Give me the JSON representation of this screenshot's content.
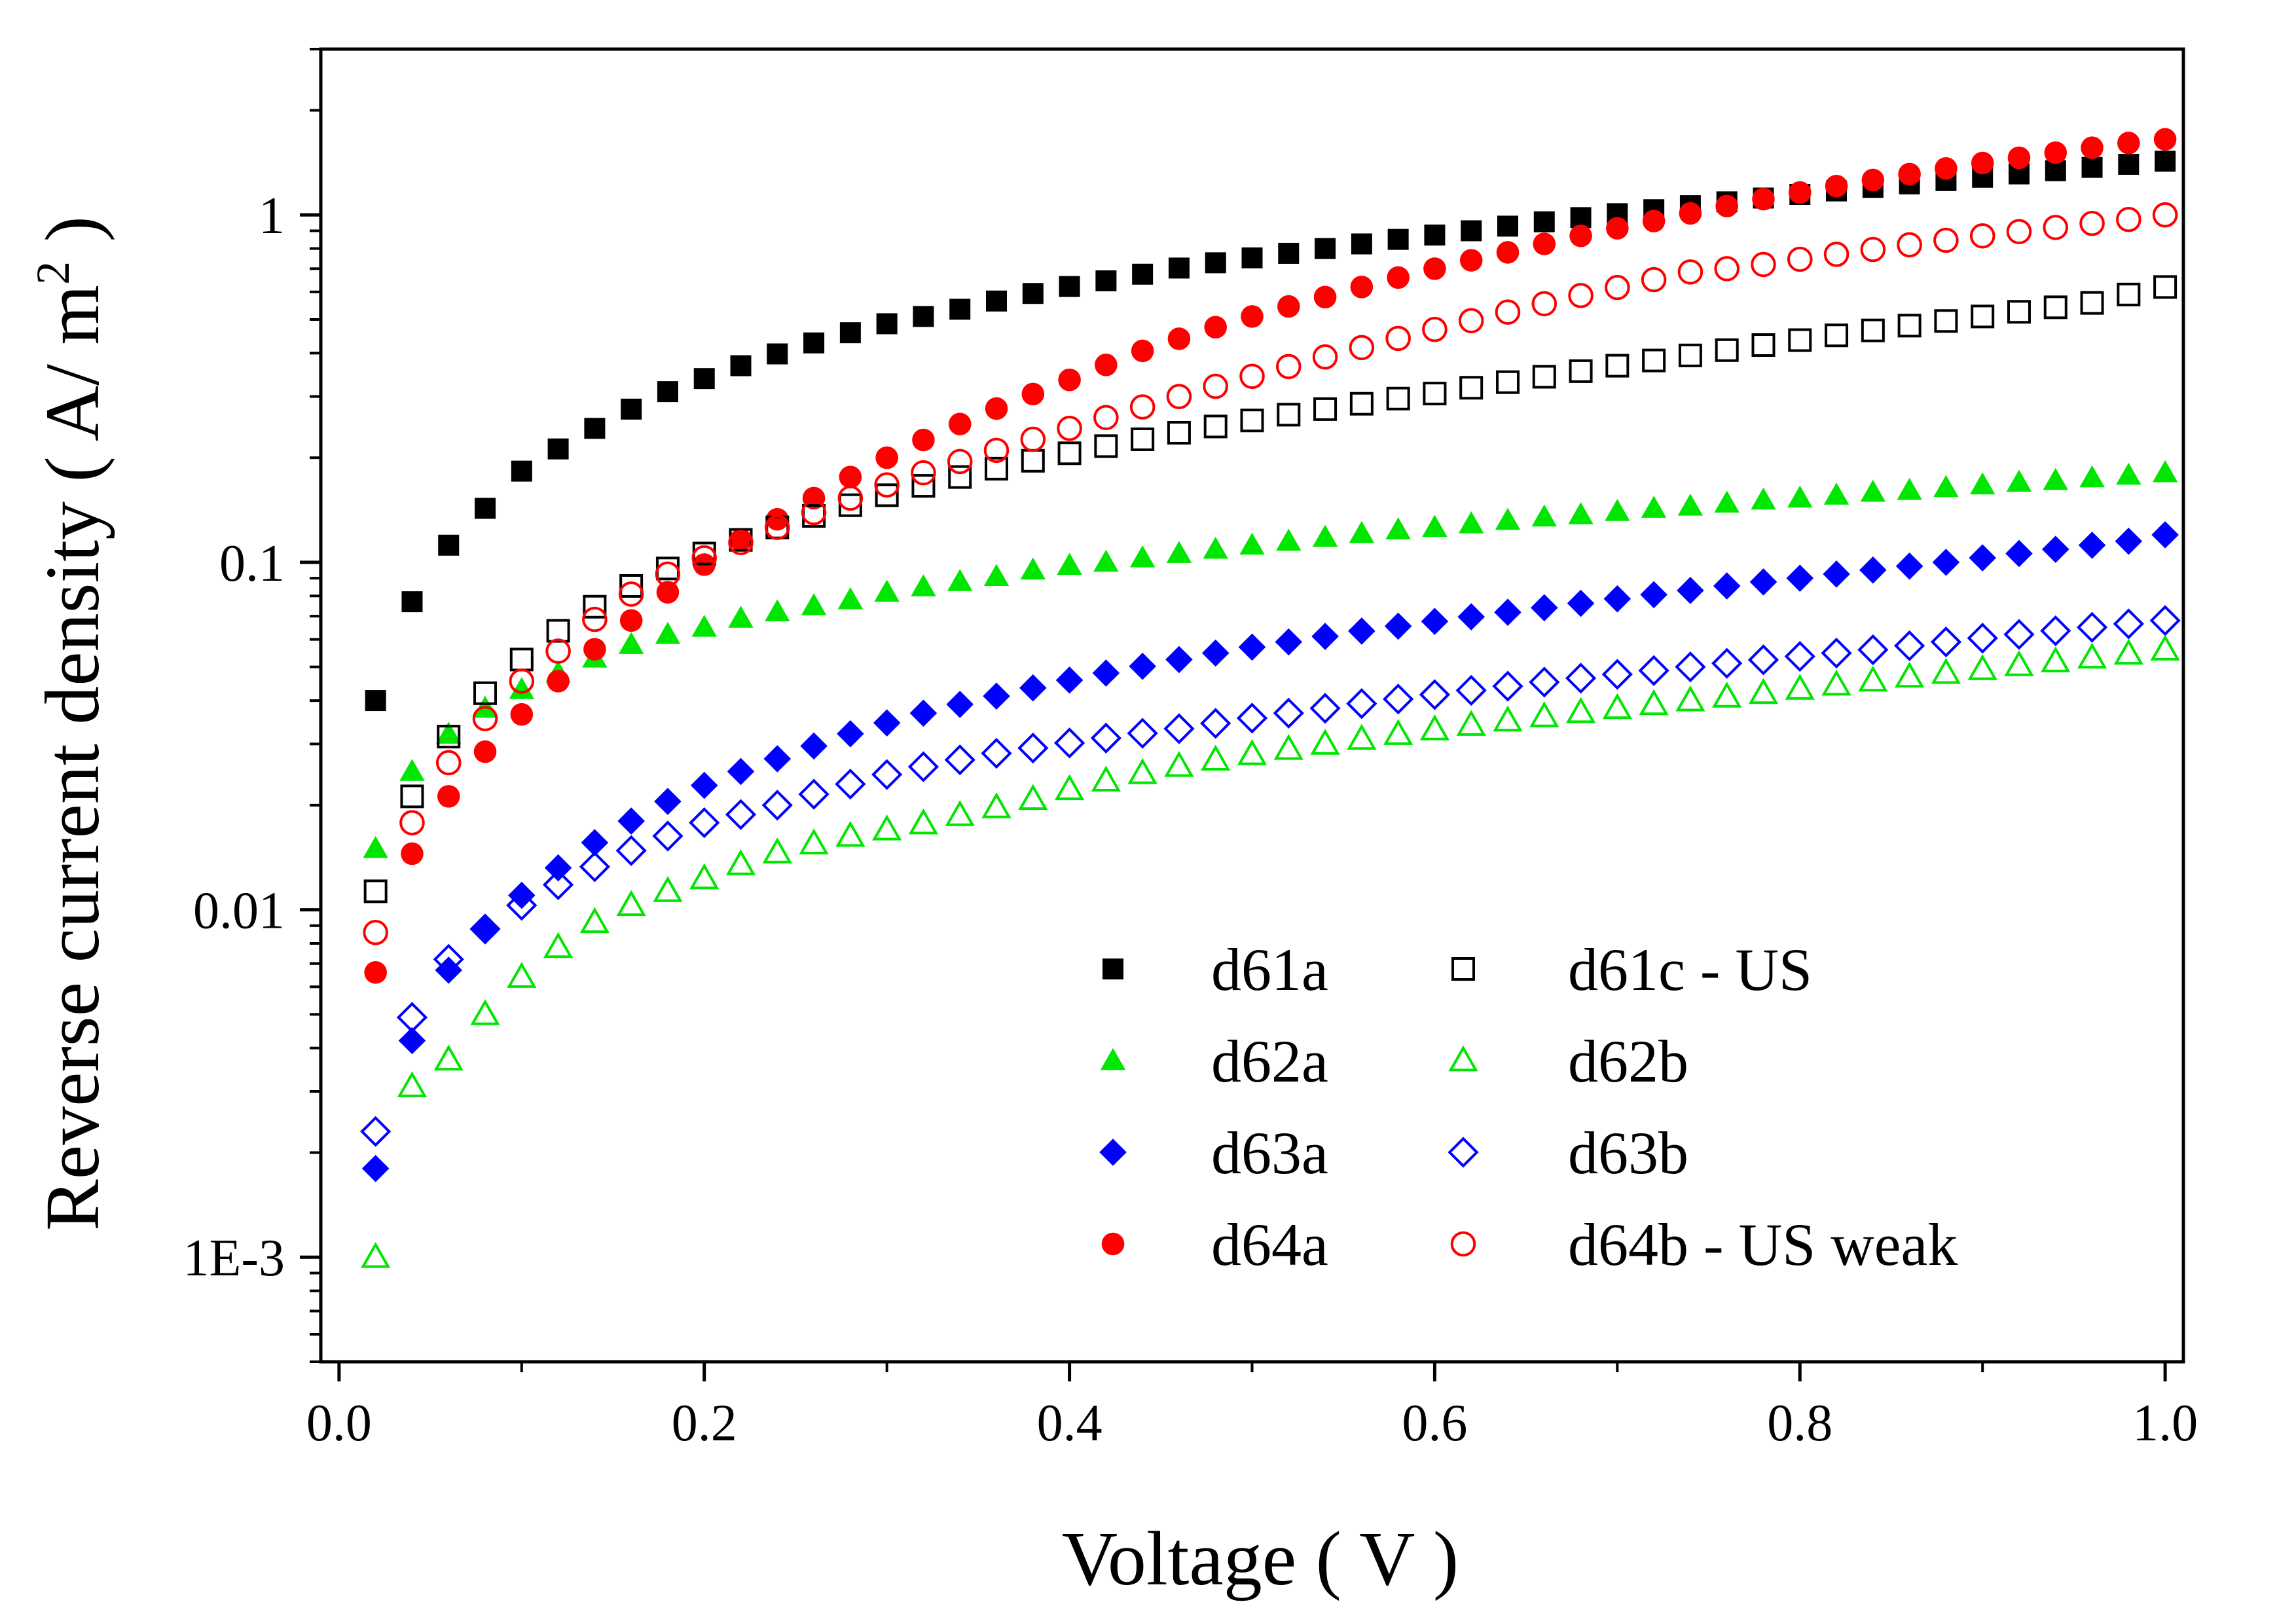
{
  "chart_data": {
    "type": "scatter",
    "title": "",
    "xlabel": "Voltage ( V )",
    "ylabel_main": "Reverse current density ( A/ m",
    "ylabel_sup": "2",
    "ylabel_tail": " )",
    "xscale": "linear",
    "yscale": "log",
    "xlim": [
      -0.01,
      1.01
    ],
    "ylim": [
      0.0005,
      3.0
    ],
    "grid": false,
    "legend_position": "bottom-right",
    "xticks": [
      0.0,
      0.2,
      0.4,
      0.6,
      0.8,
      1.0
    ],
    "xtick_labels": [
      "0.0",
      "0.2",
      "0.4",
      "0.6",
      "0.8",
      "1.0"
    ],
    "yticks": [
      0.001,
      0.01,
      0.1,
      1
    ],
    "ytick_labels": [
      "1E-3",
      "0.01",
      "0.1",
      "1"
    ],
    "x": [
      0.02,
      0.04,
      0.06,
      0.08,
      0.1,
      0.12,
      0.14,
      0.16,
      0.18,
      0.2,
      0.22,
      0.24,
      0.26,
      0.28,
      0.3,
      0.32,
      0.34,
      0.36,
      0.38,
      0.4,
      0.42,
      0.44,
      0.46,
      0.48,
      0.5,
      0.52,
      0.54,
      0.56,
      0.58,
      0.6,
      0.62,
      0.64,
      0.66,
      0.68,
      0.7,
      0.72,
      0.74,
      0.76,
      0.78,
      0.8,
      0.82,
      0.84,
      0.86,
      0.88,
      0.9,
      0.92,
      0.94,
      0.96,
      0.98,
      1.0
    ],
    "series": [
      {
        "name": "d61a",
        "marker": "square",
        "filled": true,
        "color": "#000000",
        "values": [
          0.04,
          0.077,
          0.112,
          0.143,
          0.183,
          0.212,
          0.243,
          0.276,
          0.31,
          0.338,
          0.368,
          0.398,
          0.428,
          0.458,
          0.486,
          0.51,
          0.535,
          0.565,
          0.594,
          0.622,
          0.646,
          0.675,
          0.703,
          0.728,
          0.752,
          0.775,
          0.8,
          0.825,
          0.85,
          0.875,
          0.9,
          0.928,
          0.955,
          0.982,
          1.008,
          1.035,
          1.063,
          1.09,
          1.118,
          1.145,
          1.172,
          1.2,
          1.228,
          1.255,
          1.283,
          1.312,
          1.34,
          1.37,
          1.398,
          1.427
        ]
      },
      {
        "name": "d62a",
        "marker": "triangle",
        "filled": true,
        "color": "#00e600",
        "values": [
          0.015,
          0.025,
          0.032,
          0.038,
          0.043,
          0.048,
          0.053,
          0.058,
          0.062,
          0.065,
          0.069,
          0.072,
          0.075,
          0.078,
          0.082,
          0.085,
          0.088,
          0.091,
          0.095,
          0.098,
          0.1,
          0.103,
          0.106,
          0.109,
          0.112,
          0.115,
          0.118,
          0.121,
          0.124,
          0.126,
          0.129,
          0.132,
          0.135,
          0.137,
          0.14,
          0.143,
          0.145,
          0.148,
          0.151,
          0.153,
          0.156,
          0.159,
          0.161,
          0.164,
          0.167,
          0.17,
          0.172,
          0.175,
          0.178,
          0.181
        ]
      },
      {
        "name": "d63a",
        "marker": "diamond",
        "filled": true,
        "color": "#0000ff",
        "values": [
          0.0018,
          0.0042,
          0.0067,
          0.0089,
          0.011,
          0.0132,
          0.0156,
          0.018,
          0.0205,
          0.0228,
          0.025,
          0.0272,
          0.0296,
          0.0321,
          0.0345,
          0.0368,
          0.039,
          0.0412,
          0.0435,
          0.0458,
          0.048,
          0.0502,
          0.0525,
          0.0548,
          0.057,
          0.059,
          0.0612,
          0.0634,
          0.0655,
          0.0676,
          0.0697,
          0.0718,
          0.074,
          0.0762,
          0.0785,
          0.0807,
          0.083,
          0.0855,
          0.0878,
          0.09,
          0.0925,
          0.095,
          0.0975,
          0.1,
          0.103,
          0.106,
          0.109,
          0.112,
          0.115,
          0.12
        ]
      },
      {
        "name": "d64a",
        "marker": "circle",
        "filled": true,
        "color": "#ff0000",
        "values": [
          0.0066,
          0.0145,
          0.0212,
          0.0285,
          0.0365,
          0.0455,
          0.0562,
          0.068,
          0.082,
          0.0985,
          0.116,
          0.133,
          0.153,
          0.176,
          0.2,
          0.225,
          0.25,
          0.277,
          0.305,
          0.335,
          0.37,
          0.406,
          0.44,
          0.475,
          0.51,
          0.545,
          0.58,
          0.62,
          0.66,
          0.7,
          0.74,
          0.78,
          0.825,
          0.87,
          0.915,
          0.96,
          1.01,
          1.06,
          1.11,
          1.16,
          1.21,
          1.26,
          1.31,
          1.36,
          1.41,
          1.46,
          1.51,
          1.56,
          1.61,
          1.65
        ]
      },
      {
        "name": "d61c - US",
        "marker": "square",
        "filled": false,
        "color": "#000000",
        "values": [
          0.0113,
          0.0212,
          0.0315,
          0.042,
          0.0525,
          0.0635,
          0.0745,
          0.0855,
          0.096,
          0.106,
          0.116,
          0.126,
          0.136,
          0.146,
          0.156,
          0.166,
          0.176,
          0.186,
          0.196,
          0.206,
          0.216,
          0.226,
          0.236,
          0.246,
          0.256,
          0.266,
          0.276,
          0.286,
          0.296,
          0.306,
          0.318,
          0.33,
          0.342,
          0.355,
          0.368,
          0.381,
          0.394,
          0.408,
          0.422,
          0.436,
          0.45,
          0.465,
          0.48,
          0.495,
          0.51,
          0.526,
          0.542,
          0.558,
          0.59,
          0.62
        ]
      },
      {
        "name": "d62b",
        "marker": "triangle",
        "filled": false,
        "color": "#00e600",
        "values": [
          0.001,
          0.0031,
          0.0037,
          0.005,
          0.0064,
          0.0078,
          0.0092,
          0.0103,
          0.0113,
          0.0123,
          0.0135,
          0.0146,
          0.0155,
          0.0163,
          0.017,
          0.0177,
          0.0187,
          0.0197,
          0.0208,
          0.0222,
          0.0235,
          0.0247,
          0.0259,
          0.027,
          0.028,
          0.029,
          0.03,
          0.031,
          0.032,
          0.033,
          0.034,
          0.035,
          0.036,
          0.037,
          0.038,
          0.039,
          0.04,
          0.041,
          0.042,
          0.0432,
          0.0444,
          0.0456,
          0.0468,
          0.048,
          0.0492,
          0.0505,
          0.0518,
          0.0531,
          0.0545,
          0.056
        ]
      },
      {
        "name": "d63b",
        "marker": "diamond",
        "filled": false,
        "color": "#0000ff",
        "values": [
          0.0023,
          0.0049,
          0.0072,
          0.0088,
          0.0103,
          0.0118,
          0.0133,
          0.0148,
          0.0163,
          0.0178,
          0.0188,
          0.02,
          0.0215,
          0.023,
          0.0245,
          0.0258,
          0.027,
          0.0282,
          0.0292,
          0.0302,
          0.0312,
          0.0322,
          0.0332,
          0.0344,
          0.0356,
          0.0368,
          0.038,
          0.0392,
          0.0404,
          0.0416,
          0.0428,
          0.044,
          0.0452,
          0.0464,
          0.0476,
          0.0488,
          0.05,
          0.0512,
          0.0524,
          0.0536,
          0.0548,
          0.056,
          0.0575,
          0.059,
          0.0605,
          0.062,
          0.0635,
          0.065,
          0.0665,
          0.068
        ]
      },
      {
        "name": "d64b - US weak",
        "marker": "circle",
        "filled": false,
        "color": "#ff0000",
        "values": [
          0.0086,
          0.0178,
          0.0265,
          0.0355,
          0.0455,
          0.0555,
          0.0685,
          0.081,
          0.0925,
          0.103,
          0.114,
          0.126,
          0.139,
          0.153,
          0.167,
          0.181,
          0.195,
          0.21,
          0.226,
          0.243,
          0.261,
          0.28,
          0.3,
          0.321,
          0.343,
          0.366,
          0.39,
          0.415,
          0.441,
          0.468,
          0.496,
          0.525,
          0.555,
          0.586,
          0.618,
          0.651,
          0.685,
          0.7,
          0.72,
          0.745,
          0.77,
          0.795,
          0.82,
          0.845,
          0.87,
          0.895,
          0.92,
          0.945,
          0.97,
          1.0
        ]
      }
    ]
  }
}
